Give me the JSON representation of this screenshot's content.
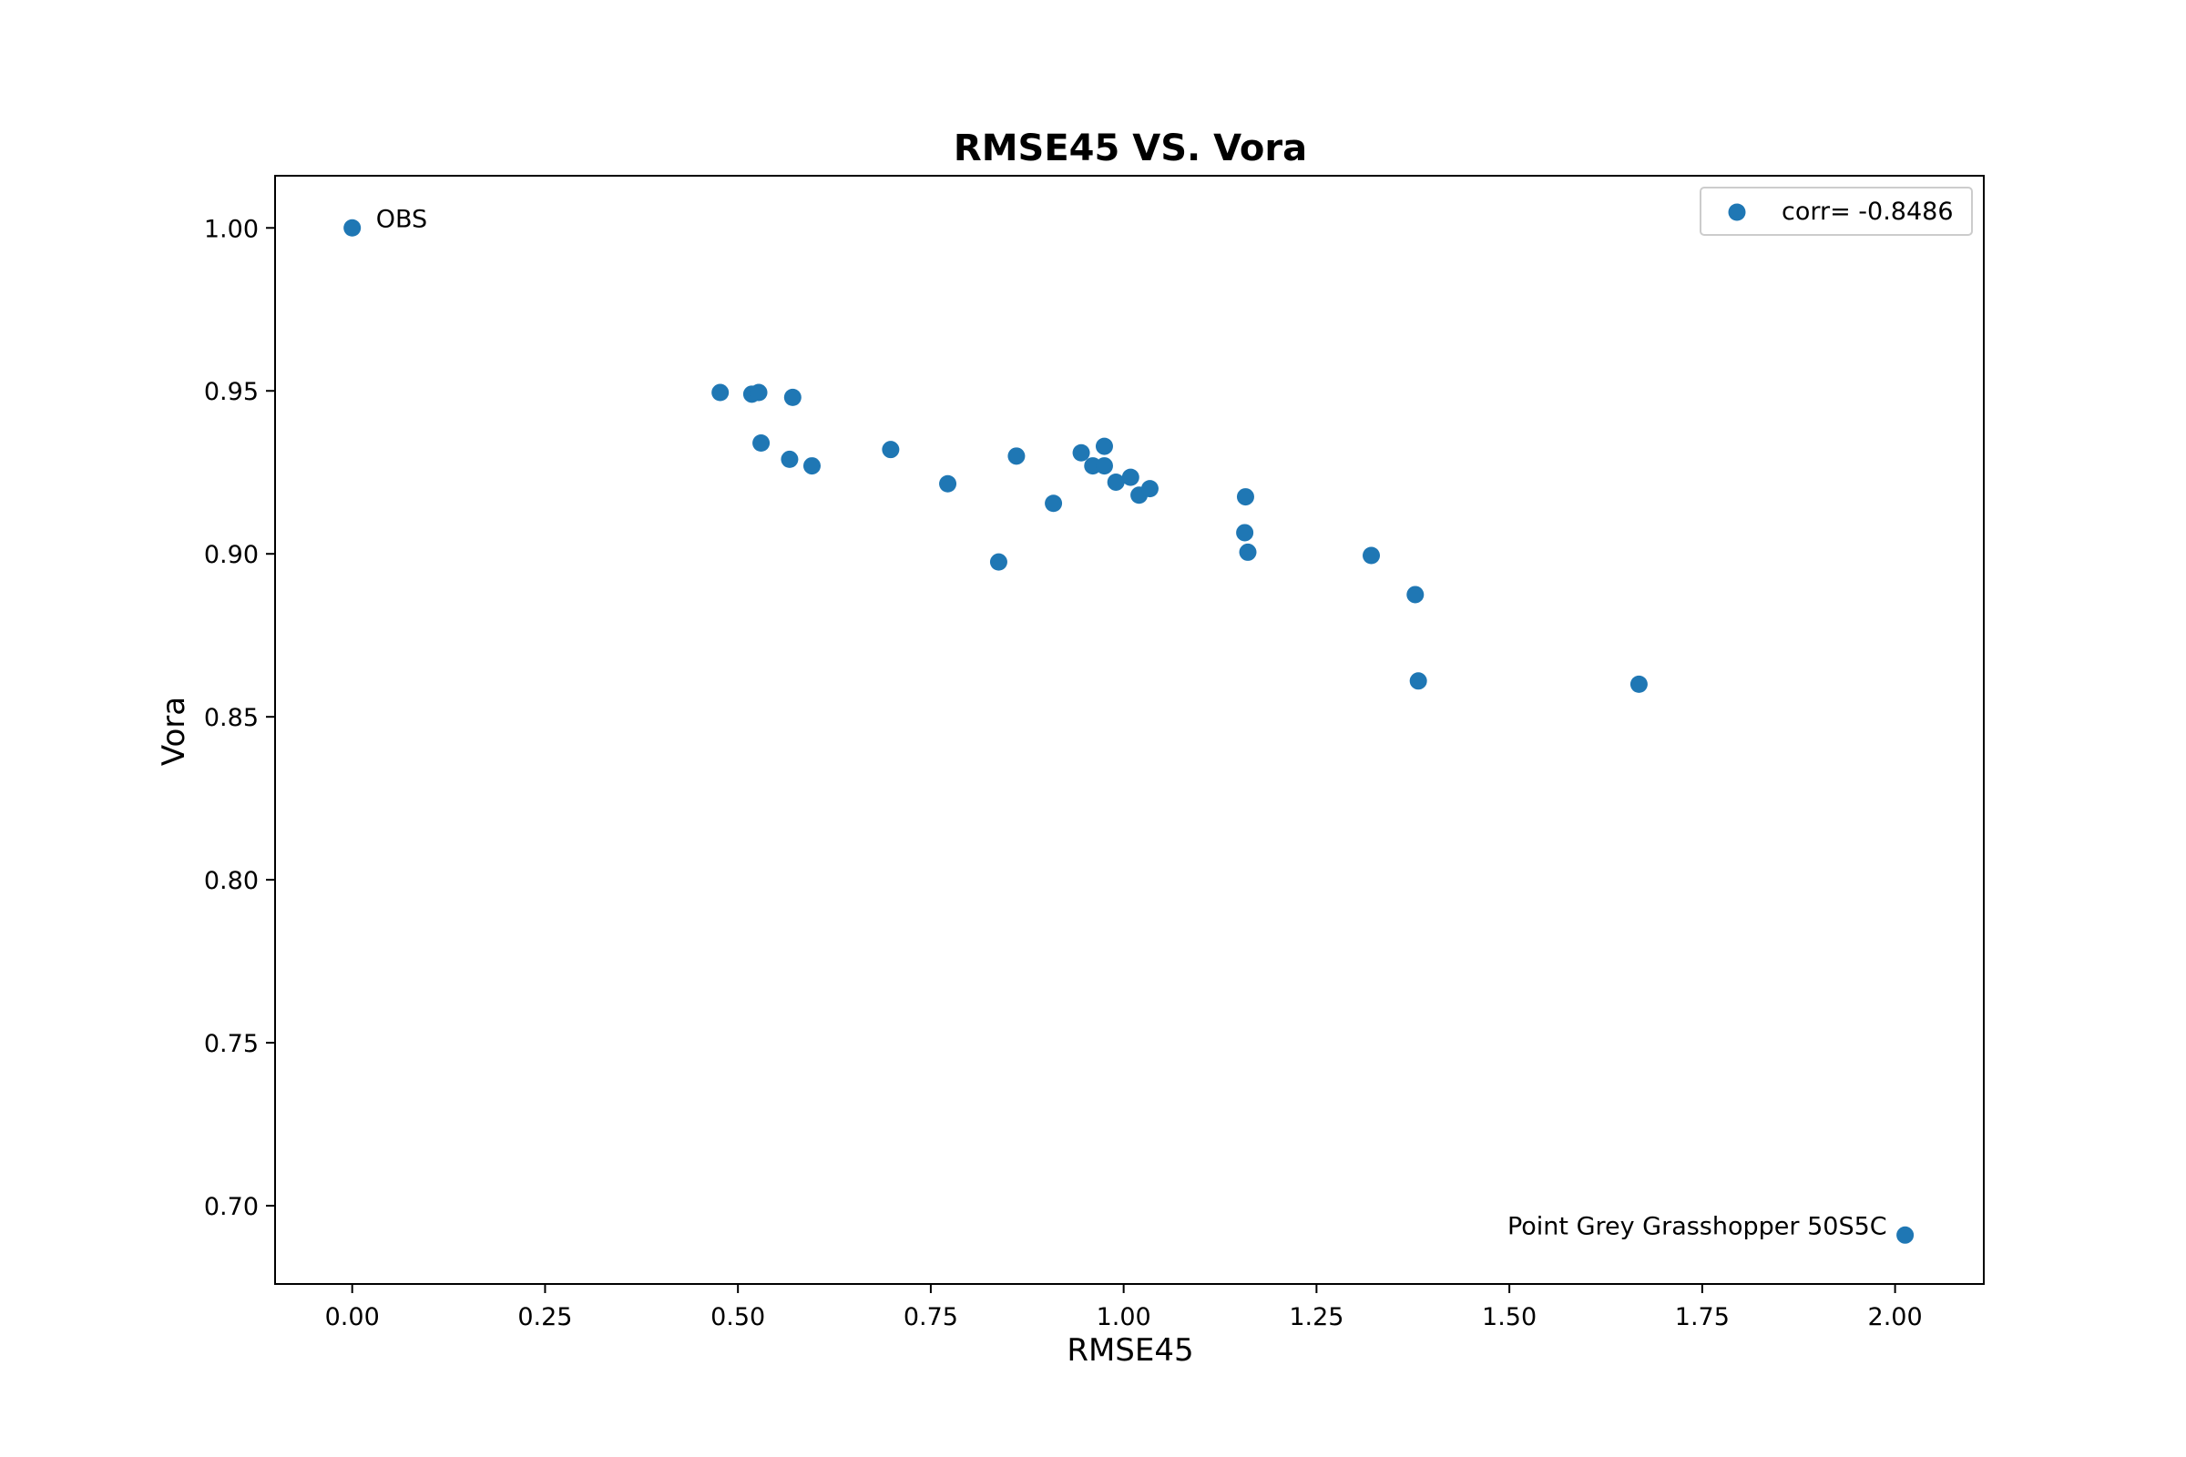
{
  "chart_data": {
    "type": "scatter",
    "title": "RMSE45 VS. Vora",
    "xlabel": "RMSE45",
    "ylabel": "Vora",
    "xlim": [
      -0.1,
      2.115
    ],
    "ylim": [
      0.676,
      1.016
    ],
    "xticks": [
      0.0,
      0.25,
      0.5,
      0.75,
      1.0,
      1.25,
      1.5,
      1.75,
      2.0
    ],
    "xtick_labels": [
      "0.00",
      "0.25",
      "0.50",
      "0.75",
      "1.00",
      "1.25",
      "1.50",
      "1.75",
      "2.00"
    ],
    "yticks": [
      0.7,
      0.75,
      0.8,
      0.85,
      0.9,
      0.95,
      1.0
    ],
    "ytick_labels": [
      "0.70",
      "0.75",
      "0.80",
      "0.85",
      "0.90",
      "0.95",
      "1.00"
    ],
    "grid": false,
    "legend": {
      "placement": "upper-right",
      "entries": [
        "corr= -0.8486"
      ]
    },
    "series": [
      {
        "name": "corr= -0.8486",
        "color": "#1f77b4",
        "marker": "circle",
        "points": [
          [
            0.0,
            1.0
          ],
          [
            0.477,
            0.9495
          ],
          [
            0.518,
            0.949
          ],
          [
            0.527,
            0.9495
          ],
          [
            0.571,
            0.948
          ],
          [
            0.53,
            0.934
          ],
          [
            0.567,
            0.929
          ],
          [
            0.596,
            0.927
          ],
          [
            0.698,
            0.932
          ],
          [
            0.772,
            0.9215
          ],
          [
            0.838,
            0.8975
          ],
          [
            0.861,
            0.93
          ],
          [
            0.909,
            0.9155
          ],
          [
            0.945,
            0.931
          ],
          [
            0.96,
            0.927
          ],
          [
            0.975,
            0.927
          ],
          [
            0.975,
            0.933
          ],
          [
            0.99,
            0.922
          ],
          [
            1.009,
            0.9235
          ],
          [
            1.02,
            0.918
          ],
          [
            1.034,
            0.92
          ],
          [
            1.157,
            0.9065
          ],
          [
            1.158,
            0.9175
          ],
          [
            1.161,
            0.9005
          ],
          [
            1.321,
            0.8995
          ],
          [
            1.378,
            0.8875
          ],
          [
            1.382,
            0.861
          ],
          [
            1.668,
            0.86
          ],
          [
            2.013,
            0.691
          ]
        ]
      }
    ],
    "annotations": [
      {
        "text": "OBS",
        "x": 0.0,
        "y": 1.0,
        "side": "right"
      },
      {
        "text": "Point Grey Grasshopper 50S5C",
        "x": 2.013,
        "y": 0.691,
        "side": "left"
      }
    ]
  }
}
